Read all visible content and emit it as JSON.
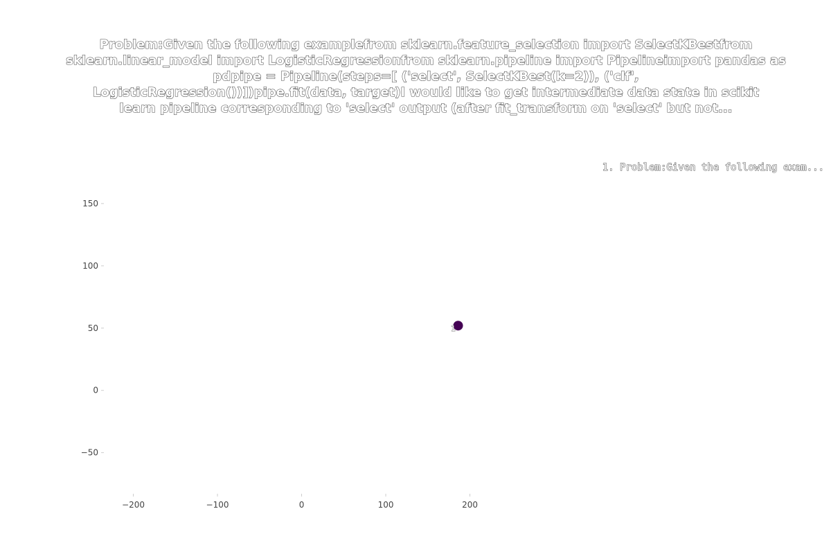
{
  "chart_data": {
    "type": "scatter",
    "title_lines": [
      "Problem:Given the following examplefrom sklearn.feature_selection import SelectKBestfrom",
      "sklearn.linear_model import LogisticRegressionfrom sklearn.pipeline import Pipelineimport pandas as",
      "pdpipe = Pipeline(steps=[     ('select', SelectKBest(k=2)),     ('clf',",
      "LogisticRegression())])pipe.fit(data, target)I would like to get intermediate data state in scikit",
      "learn pipeline corresponding to 'select' output (after fit_transform on 'select' but not..."
    ],
    "xlabel": "",
    "ylabel": "",
    "xlim": [
      -235,
      230
    ],
    "ylim": [
      -83,
      190
    ],
    "x_ticks": [
      -200,
      -100,
      0,
      100,
      200
    ],
    "x_tick_labels": [
      "−200",
      "−100",
      "0",
      "100",
      "200"
    ],
    "y_ticks": [
      150,
      100,
      50,
      0,
      -50
    ],
    "y_tick_labels": [
      "150",
      "100",
      "50",
      "0",
      "−50"
    ],
    "grid": false,
    "legend_position": "top-right",
    "legend": [
      "1. Problem:Given the following exam..."
    ],
    "points": [
      {
        "x": 186,
        "y": 52,
        "label": "1",
        "color": "#440154"
      }
    ]
  }
}
